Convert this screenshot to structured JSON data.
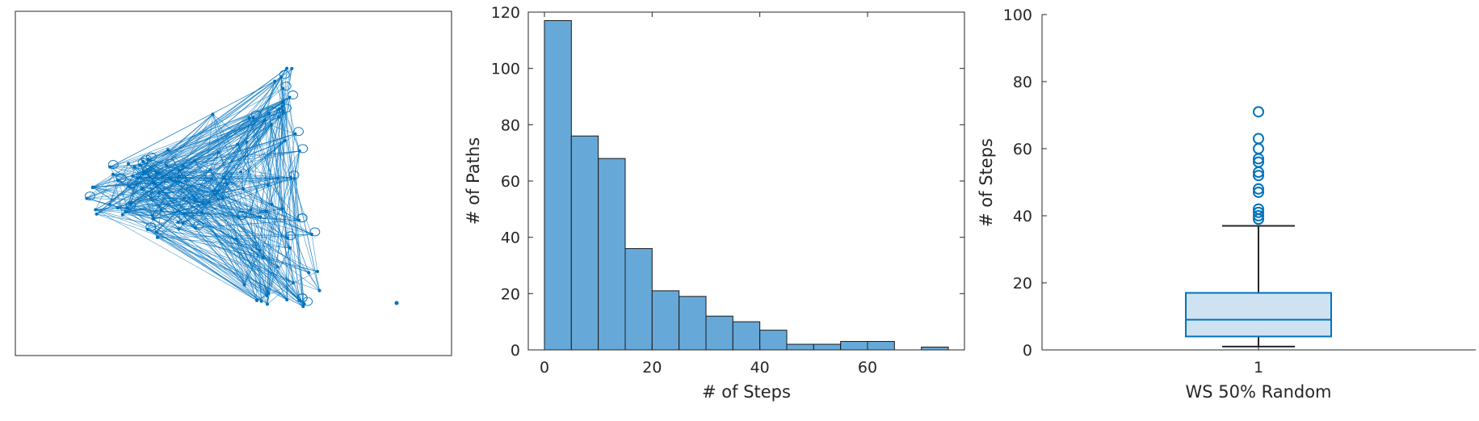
{
  "colors": {
    "graph": "#0072bd",
    "bar_fill": "#66a9d9",
    "bar_edge": "#1a1a1a",
    "box_edge": "#0072bd",
    "box_fill": "#cfe2f2",
    "whisker": "#262626",
    "axis": "#262626"
  },
  "chart_data": [
    {
      "type": "graph",
      "description_visible": "network plot with blue nodes and edges",
      "axes_ticks_visible": false
    },
    {
      "type": "bar",
      "subtype": "histogram",
      "bin_edges": [
        0,
        5,
        10,
        15,
        20,
        25,
        30,
        35,
        40,
        45,
        50,
        55,
        60,
        65,
        70,
        75
      ],
      "values": [
        117,
        76,
        68,
        36,
        21,
        19,
        12,
        10,
        7,
        2,
        2,
        3,
        3,
        0,
        1
      ],
      "xlabel": "# of Steps",
      "ylabel": "# of Paths",
      "xlim": [
        -3,
        78
      ],
      "ylim": [
        0,
        120
      ],
      "xticks": [
        0,
        20,
        40,
        60
      ],
      "yticks": [
        0,
        20,
        40,
        60,
        80,
        100,
        120
      ],
      "grid": false
    },
    {
      "type": "box",
      "category": "1",
      "q1": 4,
      "median": 9,
      "q3": 17,
      "whisker_low": 1,
      "whisker_high": 37,
      "outliers": [
        39,
        40,
        41,
        42,
        47,
        48,
        52,
        53,
        56,
        57,
        60,
        63,
        71
      ],
      "xlabel": "WS 50% Random",
      "ylabel": "# of Steps",
      "ylim": [
        0,
        100
      ],
      "yticks": [
        0,
        20,
        40,
        60,
        80,
        100
      ],
      "grid": false
    }
  ]
}
